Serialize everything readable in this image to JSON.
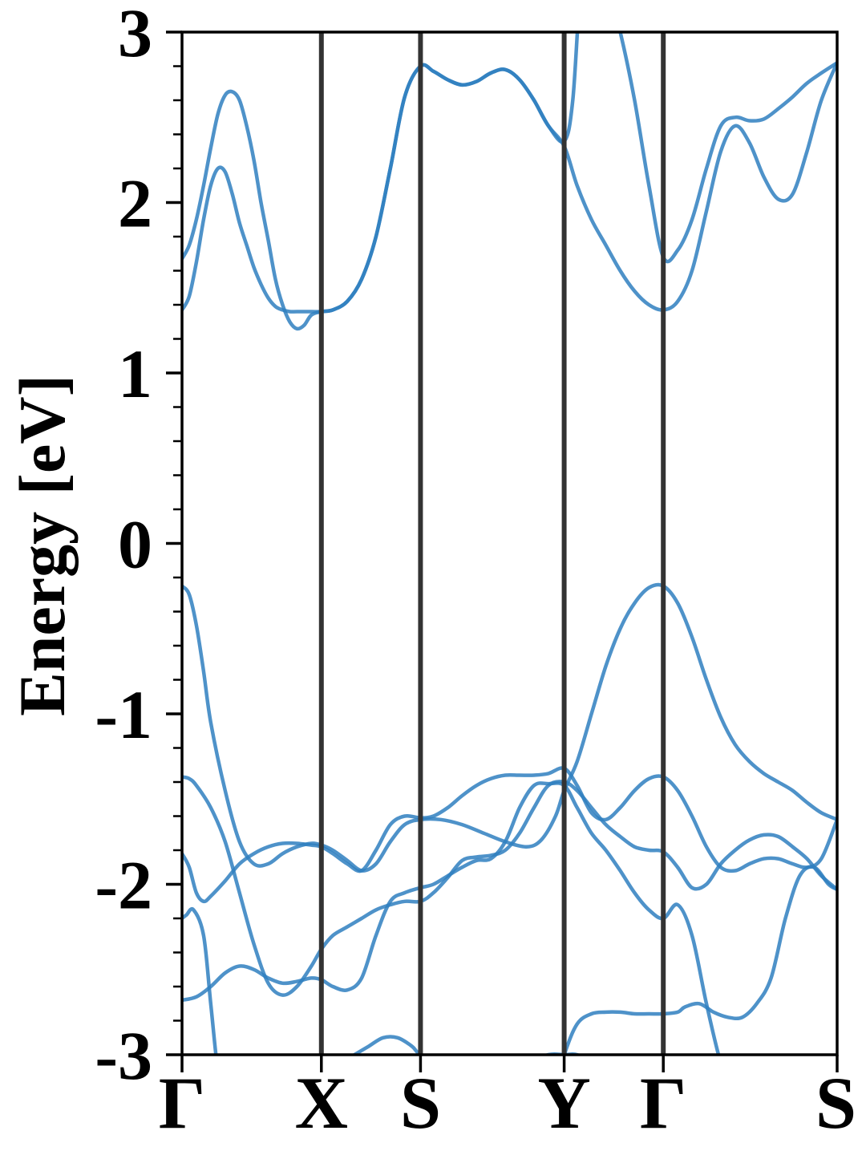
{
  "chart_data": {
    "type": "line",
    "title": "",
    "xlabel": "",
    "ylabel": "Energy [eV]",
    "ylim": [
      -3,
      3
    ],
    "yticks": [
      {
        "value": 3,
        "label": "3"
      },
      {
        "value": 2,
        "label": "2"
      },
      {
        "value": 1,
        "label": "1"
      },
      {
        "value": 0,
        "label": "0"
      },
      {
        "value": -1,
        "label": "-1"
      },
      {
        "value": -2,
        "label": "-2"
      },
      {
        "value": -3,
        "label": "-3"
      }
    ],
    "minor_ytick_step": 0.2,
    "xlim": [
      0,
      4.56
    ],
    "kpoints": [
      {
        "x": 0,
        "label": "Γ"
      },
      {
        "x": 0.97,
        "label": "X"
      },
      {
        "x": 1.66,
        "label": "S"
      },
      {
        "x": 2.66,
        "label": "Y"
      },
      {
        "x": 3.35,
        "label": "Γ"
      },
      {
        "x": 4.56,
        "label": "S"
      }
    ],
    "grid": false,
    "band_color": "#2f7fbf",
    "kline_color": "#333333",
    "series": [
      {
        "x": [
          0,
          0.05,
          0.1,
          0.2,
          0.3,
          0.4,
          0.5,
          0.6,
          0.7,
          0.8,
          0.9,
          0.97,
          1.0,
          1.1,
          1.2,
          1.3,
          1.4,
          1.5,
          1.6,
          1.66,
          1.8,
          2.0,
          2.2,
          2.4,
          2.55,
          2.66,
          2.75,
          2.85,
          2.95,
          3.05,
          3.15,
          3.25,
          3.35,
          3.45,
          3.5,
          3.6,
          3.7,
          3.8,
          3.9,
          4.0,
          4.1,
          4.2,
          4.3,
          4.4,
          4.56
        ],
        "y": [
          -3.3,
          -3.2,
          -3.15,
          -3.15,
          -3.2,
          -3.3,
          -3.25,
          -3.2,
          -3.2,
          -3.25,
          -3.2,
          -3.15,
          -3.1,
          -3.05,
          -3.0,
          -2.95,
          -2.9,
          -2.9,
          -2.95,
          -3.0,
          -3.05,
          -3.1,
          -3.1,
          -3.05,
          -3.0,
          -3.0,
          -3.0,
          -3.05,
          -3.15,
          -3.25,
          -3.3,
          -3.35,
          -3.4,
          -3.4,
          -3.35,
          -3.3,
          -3.3,
          -3.3,
          -3.3,
          -3.3,
          -3.25,
          -3.2,
          -3.15,
          -3.12,
          -3.1
        ]
      },
      {
        "x": [
          0,
          0.03,
          0.08,
          0.15,
          0.2,
          0.25,
          0.3,
          0.4,
          0.5,
          0.6,
          0.7,
          0.8,
          0.9,
          0.97,
          1.05,
          1.15,
          1.25,
          1.3,
          1.35,
          1.45,
          1.55,
          1.66,
          1.8,
          1.95,
          2.05,
          2.15,
          2.25,
          2.35,
          2.45,
          2.55,
          2.66,
          2.75,
          2.85,
          2.95,
          3.05,
          3.15,
          3.25,
          3.35,
          3.45,
          3.5,
          3.6,
          3.7,
          3.8,
          3.9,
          4.0,
          4.1,
          4.2,
          4.3,
          4.4,
          4.5,
          4.56
        ],
        "y": [
          -2.2,
          -2.18,
          -2.15,
          -2.3,
          -2.7,
          -3.1,
          -3.3,
          -3.3,
          -3.3,
          -3.3,
          -3.3,
          -3.3,
          -3.3,
          -3.3,
          -3.3,
          -3.3,
          -3.3,
          -3.3,
          -3.3,
          -3.3,
          -3.3,
          -3.3,
          -3.3,
          -3.3,
          -3.3,
          -3.3,
          -3.3,
          -3.3,
          -3.3,
          -3.3,
          -3.0,
          -2.82,
          -2.76,
          -2.75,
          -2.75,
          -2.76,
          -2.76,
          -2.76,
          -2.75,
          -2.72,
          -2.7,
          -2.75,
          -2.78,
          -2.78,
          -2.7,
          -2.55,
          -2.2,
          -1.95,
          -1.9,
          -2.0,
          -2.03
        ]
      },
      {
        "x": [
          0,
          0.1,
          0.2,
          0.3,
          0.4,
          0.5,
          0.6,
          0.7,
          0.8,
          0.9,
          0.97,
          1.05,
          1.15,
          1.25,
          1.35,
          1.45,
          1.55,
          1.66,
          1.75,
          1.85,
          1.95,
          2.05,
          2.15,
          2.25,
          2.35,
          2.45,
          2.55,
          2.66,
          2.75,
          2.85,
          2.95,
          3.05,
          3.15,
          3.25,
          3.35,
          3.45,
          3.55,
          3.65,
          3.75,
          3.85,
          3.95,
          4.05,
          4.15,
          4.25,
          4.35,
          4.45,
          4.56
        ],
        "y": [
          -2.68,
          -2.66,
          -2.6,
          -2.52,
          -2.48,
          -2.5,
          -2.55,
          -2.58,
          -2.57,
          -2.55,
          -2.56,
          -2.6,
          -2.62,
          -2.55,
          -2.3,
          -2.1,
          -2.05,
          -2.02,
          -2.0,
          -1.95,
          -1.9,
          -1.86,
          -1.85,
          -1.75,
          -1.55,
          -1.42,
          -1.41,
          -1.42,
          -1.55,
          -1.7,
          -1.8,
          -1.92,
          -2.05,
          -2.15,
          -2.2,
          -2.12,
          -2.3,
          -2.7,
          -3.05,
          -3.3,
          -3.3,
          -3.3,
          -3.3,
          -3.3,
          -3.3,
          -3.3,
          -3.3
        ]
      },
      {
        "x": [
          0,
          0.05,
          0.1,
          0.15,
          0.2,
          0.3,
          0.4,
          0.5,
          0.6,
          0.7,
          0.8,
          0.9,
          0.97,
          1.05,
          1.15,
          1.25,
          1.35,
          1.45,
          1.55,
          1.66,
          1.75,
          1.85,
          1.95,
          2.05,
          2.15,
          2.25,
          2.35,
          2.45,
          2.55,
          2.66,
          2.75,
          2.85,
          2.95,
          3.05,
          3.15,
          3.25,
          3.35,
          3.45,
          3.55,
          3.65,
          3.75,
          3.85,
          3.95,
          4.05,
          4.15,
          4.25,
          4.35,
          4.45,
          4.56
        ],
        "y": [
          -1.82,
          -1.9,
          -2.05,
          -2.1,
          -2.07,
          -1.98,
          -1.88,
          -1.82,
          -1.78,
          -1.76,
          -1.76,
          -1.77,
          -1.78,
          -1.82,
          -1.88,
          -1.92,
          -1.8,
          -1.65,
          -1.6,
          -1.61,
          -1.6,
          -1.55,
          -1.48,
          -1.42,
          -1.38,
          -1.36,
          -1.36,
          -1.36,
          -1.35,
          -1.32,
          -1.42,
          -1.58,
          -1.62,
          -1.55,
          -1.45,
          -1.38,
          -1.37,
          -1.45,
          -1.6,
          -1.78,
          -1.9,
          -1.92,
          -1.88,
          -1.85,
          -1.85,
          -1.88,
          -1.9,
          -1.85,
          -1.62
        ]
      },
      {
        "x": [
          0,
          0.05,
          0.1,
          0.2,
          0.3,
          0.4,
          0.5,
          0.6,
          0.7,
          0.8,
          0.9,
          0.97,
          1.05,
          1.15,
          1.25,
          1.35,
          1.45,
          1.55,
          1.66,
          1.75,
          1.85,
          1.95,
          2.05,
          2.15,
          2.25,
          2.35,
          2.45,
          2.55,
          2.66,
          2.75,
          2.85,
          2.95,
          3.05,
          3.15,
          3.25,
          3.35,
          3.45,
          3.55,
          3.65,
          3.75,
          3.85,
          3.95,
          4.05,
          4.15,
          4.25,
          4.35,
          4.45,
          4.56
        ],
        "y": [
          -1.37,
          -1.38,
          -1.42,
          -1.55,
          -1.75,
          -2.05,
          -2.35,
          -2.58,
          -2.65,
          -2.6,
          -2.48,
          -2.38,
          -2.3,
          -2.25,
          -2.2,
          -2.15,
          -2.12,
          -2.1,
          -2.1,
          -2.05,
          -1.96,
          -1.86,
          -1.84,
          -1.83,
          -1.8,
          -1.7,
          -1.55,
          -1.42,
          -1.4,
          -1.45,
          -1.55,
          -1.65,
          -1.72,
          -1.78,
          -1.8,
          -1.81,
          -1.9,
          -2.02,
          -2.0,
          -1.88,
          -1.8,
          -1.74,
          -1.71,
          -1.72,
          -1.78,
          -1.85,
          -1.95,
          -2.03
        ]
      },
      {
        "x": [
          0,
          0.05,
          0.1,
          0.15,
          0.2,
          0.3,
          0.4,
          0.5,
          0.6,
          0.7,
          0.8,
          0.9,
          0.97,
          1.05,
          1.15,
          1.25,
          1.35,
          1.45,
          1.55,
          1.66,
          1.8,
          1.95,
          2.1,
          2.25,
          2.4,
          2.5,
          2.6,
          2.66,
          2.75,
          2.85,
          2.95,
          3.05,
          3.15,
          3.25,
          3.35,
          3.45,
          3.55,
          3.65,
          3.75,
          3.85,
          3.95,
          4.05,
          4.15,
          4.25,
          4.35,
          4.45,
          4.56
        ],
        "y": [
          -0.25,
          -0.3,
          -0.48,
          -0.75,
          -1.05,
          -1.45,
          -1.75,
          -1.88,
          -1.88,
          -1.82,
          -1.78,
          -1.76,
          -1.77,
          -1.8,
          -1.86,
          -1.92,
          -1.88,
          -1.75,
          -1.65,
          -1.62,
          -1.62,
          -1.65,
          -1.7,
          -1.75,
          -1.78,
          -1.74,
          -1.6,
          -1.45,
          -1.28,
          -1.0,
          -0.72,
          -0.5,
          -0.35,
          -0.26,
          -0.25,
          -0.35,
          -0.55,
          -0.8,
          -1.02,
          -1.18,
          -1.28,
          -1.35,
          -1.4,
          -1.45,
          -1.52,
          -1.58,
          -1.62
        ]
      },
      {
        "x": [
          0,
          0.05,
          0.1,
          0.15,
          0.2,
          0.25,
          0.3,
          0.35,
          0.4,
          0.45,
          0.5,
          0.55,
          0.6,
          0.65,
          0.7,
          0.75,
          0.8,
          0.85,
          0.9,
          0.97,
          1.05,
          1.15,
          1.25,
          1.35,
          1.45,
          1.55,
          1.66,
          1.75,
          1.85,
          1.95,
          2.05,
          2.15,
          2.25,
          2.35,
          2.45,
          2.55,
          2.66,
          2.72,
          2.78,
          2.85,
          2.95,
          3.05,
          3.15,
          3.25,
          3.35,
          3.45,
          3.55,
          3.65,
          3.75,
          3.85,
          3.95,
          4.05,
          4.15,
          4.25,
          4.35,
          4.45,
          4.56
        ],
        "y": [
          1.67,
          1.75,
          1.9,
          2.1,
          2.32,
          2.52,
          2.63,
          2.65,
          2.6,
          2.45,
          2.25,
          2.0,
          1.78,
          1.55,
          1.4,
          1.3,
          1.26,
          1.28,
          1.34,
          1.36,
          1.37,
          1.42,
          1.55,
          1.8,
          2.2,
          2.62,
          2.8,
          2.77,
          2.72,
          2.69,
          2.71,
          2.76,
          2.78,
          2.72,
          2.6,
          2.45,
          2.36,
          2.6,
          3.3,
          3.3,
          3.3,
          3.0,
          2.6,
          2.1,
          1.68,
          1.72,
          1.9,
          2.2,
          2.45,
          2.5,
          2.48,
          2.49,
          2.55,
          2.62,
          2.7,
          2.76,
          2.82
        ]
      },
      {
        "x": [
          0,
          0.05,
          0.1,
          0.15,
          0.2,
          0.25,
          0.3,
          0.35,
          0.4,
          0.45,
          0.5,
          0.55,
          0.6,
          0.65,
          0.7,
          0.75,
          0.8,
          0.9,
          0.97,
          1.05,
          1.15,
          1.25,
          1.35,
          1.45,
          1.55,
          1.66,
          1.75,
          1.85,
          1.95,
          2.05,
          2.15,
          2.25,
          2.35,
          2.45,
          2.55,
          2.66,
          2.75,
          2.85,
          2.95,
          3.05,
          3.15,
          3.25,
          3.35,
          3.45,
          3.55,
          3.65,
          3.75,
          3.85,
          3.95,
          4.05,
          4.15,
          4.25,
          4.35,
          4.45,
          4.56
        ],
        "y": [
          1.37,
          1.45,
          1.65,
          1.9,
          2.1,
          2.2,
          2.18,
          2.05,
          1.88,
          1.75,
          1.62,
          1.52,
          1.44,
          1.39,
          1.37,
          1.36,
          1.36,
          1.36,
          1.36,
          1.37,
          1.42,
          1.55,
          1.8,
          2.2,
          2.62,
          2.8,
          2.77,
          2.72,
          2.69,
          2.71,
          2.76,
          2.78,
          2.72,
          2.6,
          2.45,
          2.33,
          2.1,
          1.9,
          1.75,
          1.6,
          1.48,
          1.4,
          1.37,
          1.42,
          1.6,
          1.95,
          2.3,
          2.45,
          2.35,
          2.15,
          2.02,
          2.05,
          2.3,
          2.6,
          2.82
        ]
      }
    ]
  }
}
